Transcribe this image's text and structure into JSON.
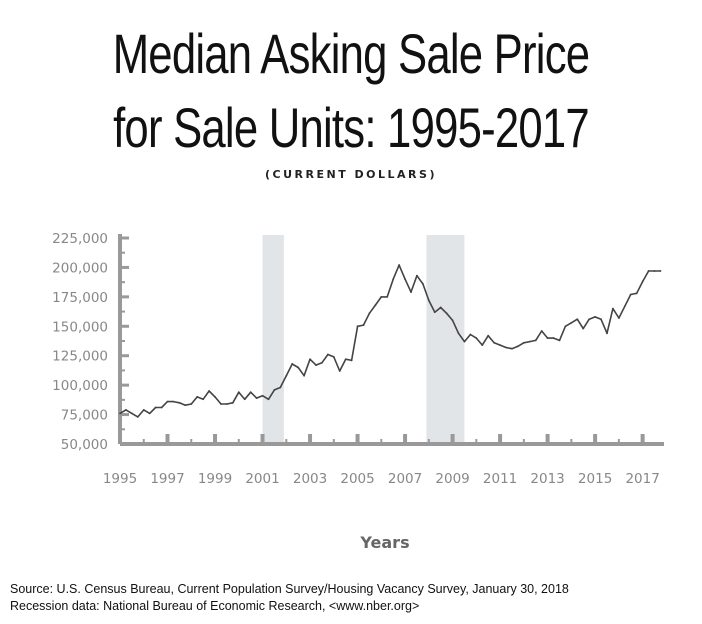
{
  "title_line1": "Median Asking Sale Price",
  "title_line2": "for Sale Units: 1995-2017",
  "subtitle": "(CURRENT DOLLARS)",
  "source_line1": "Source: U.S. Census Bureau, Current Population Survey/Housing Vacancy Survey, January 30, 2018",
  "source_line2": "Recession data: National Bureau of Economic Research, <www.nber.org>",
  "chart_data": {
    "type": "line",
    "xlabel": "Years",
    "ylabel": "",
    "xlim": [
      1995,
      2017.9
    ],
    "ylim": [
      50000,
      225000
    ],
    "x_ticks": [
      "1995",
      "1997",
      "1999",
      "2001",
      "2003",
      "2005",
      "2007",
      "2009",
      "2011",
      "2013",
      "2015",
      "2017"
    ],
    "y_ticks": [
      "50,000",
      "75,000",
      "100,000",
      "125,000",
      "150,000",
      "175,000",
      "200,000",
      "225,000"
    ],
    "recessions": [
      [
        2001.0,
        2001.9
      ],
      [
        2007.9,
        2009.5
      ]
    ],
    "grid": false,
    "colors": {
      "line": "#444444",
      "axis": "#999999",
      "recession": "#e1e5e8",
      "tick_label": "#888888"
    },
    "series": [
      {
        "x": [
          1995.0,
          1995.25,
          1995.5,
          1995.75,
          1996.0,
          1996.25,
          1996.5,
          1996.75,
          1997.0,
          1997.25,
          1997.5,
          1997.75,
          1998.0,
          1998.25,
          1998.5,
          1998.75,
          1999.0,
          1999.25,
          1999.5,
          1999.75,
          2000.0,
          2000.25,
          2000.5,
          2000.75,
          2001.0,
          2001.25,
          2001.5,
          2001.75,
          2002.0,
          2002.25,
          2002.5,
          2002.75,
          2003.0,
          2003.25,
          2003.5,
          2003.75,
          2004.0,
          2004.25,
          2004.5,
          2004.75,
          2005.0,
          2005.25,
          2005.5,
          2005.75,
          2006.0,
          2006.25,
          2006.5,
          2006.75,
          2007.0,
          2007.25,
          2007.5,
          2007.75,
          2008.0,
          2008.25,
          2008.5,
          2008.75,
          2009.0,
          2009.25,
          2009.5,
          2009.75,
          2010.0,
          2010.25,
          2010.5,
          2010.75,
          2011.0,
          2011.25,
          2011.5,
          2011.75,
          2012.0,
          2012.25,
          2012.5,
          2012.75,
          2013.0,
          2013.25,
          2013.5,
          2013.75,
          2014.0,
          2014.25,
          2014.5,
          2014.75,
          2015.0,
          2015.25,
          2015.5,
          2015.75,
          2016.0,
          2016.25,
          2016.5,
          2016.75,
          2017.0,
          2017.25,
          2017.5,
          2017.75
        ],
        "values": [
          76000,
          79000,
          76000,
          73000,
          79000,
          76000,
          81000,
          81000,
          86000,
          86000,
          85000,
          83000,
          84000,
          90000,
          88000,
          95000,
          90000,
          84000,
          84000,
          85000,
          94000,
          88000,
          94000,
          89000,
          91000,
          88000,
          96000,
          98000,
          108000,
          118000,
          115000,
          108000,
          122000,
          117000,
          119000,
          126000,
          124000,
          112000,
          122000,
          121000,
          150000,
          151000,
          161000,
          168000,
          175000,
          175000,
          190000,
          202000,
          190000,
          179000,
          193000,
          186000,
          172000,
          162000,
          166000,
          161000,
          155000,
          144000,
          137000,
          143000,
          140000,
          134000,
          142000,
          136000,
          134000,
          132000,
          131000,
          133000,
          136000,
          137000,
          138000,
          146000,
          140000,
          140000,
          138000,
          150000,
          153000,
          156000,
          148000,
          156000,
          158000,
          156000,
          144000,
          165000,
          157000,
          167000,
          177000,
          178000,
          188000,
          197000,
          197000,
          197000
        ]
      }
    ]
  }
}
